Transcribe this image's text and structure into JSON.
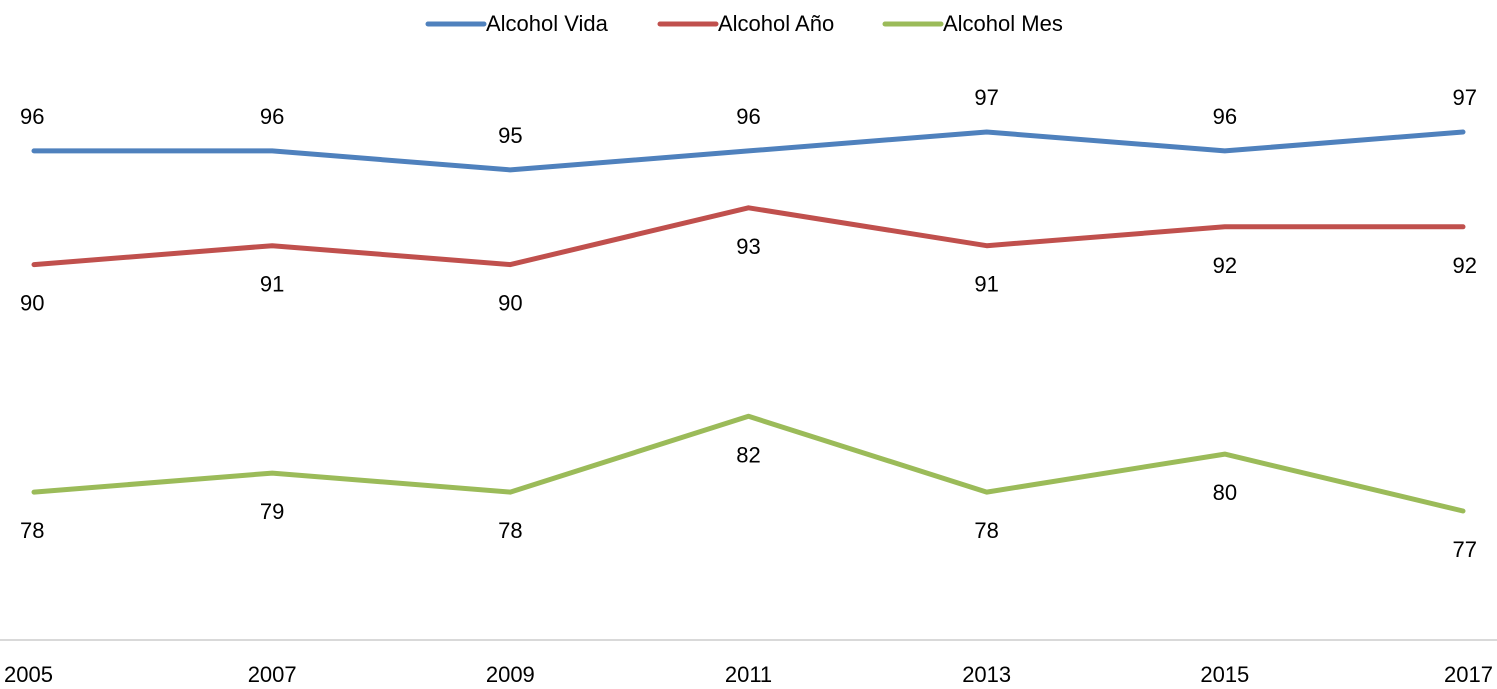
{
  "chart_data": {
    "type": "line",
    "x": [
      "2005",
      "2007",
      "2009",
      "2011",
      "2013",
      "2015",
      "2017"
    ],
    "series": [
      {
        "name": "Alcohol Vida",
        "color": "#4F81BD",
        "values": [
          96,
          96,
          95,
          96,
          97,
          96,
          97
        ],
        "label_position": "above"
      },
      {
        "name": "Alcohol Año",
        "color": "#C0504D",
        "values": [
          90,
          91,
          90,
          93,
          91,
          92,
          92
        ],
        "label_position": "below"
      },
      {
        "name": "Alcohol Mes",
        "color": "#9BBB59",
        "values": [
          78,
          79,
          78,
          82,
          78,
          80,
          77
        ],
        "label_position": "below"
      }
    ],
    "ylim": [
      70,
      100
    ],
    "grid": false,
    "legend_position": "top-center",
    "axis_color": "#D9D9D9"
  }
}
